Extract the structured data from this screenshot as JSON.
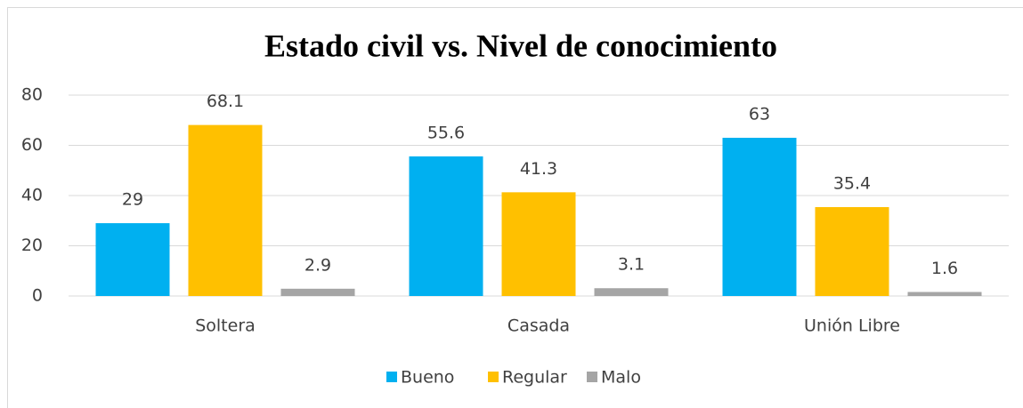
{
  "chart_data": {
    "type": "bar",
    "title": "Estado civil vs. Nivel de conocimiento",
    "categories": [
      "Soltera",
      "Casada",
      "Unión Libre"
    ],
    "series": [
      {
        "name": "Bueno",
        "color": "#00b0f0",
        "values": [
          29,
          55.6,
          63
        ]
      },
      {
        "name": "Regular",
        "color": "#ffc000",
        "values": [
          68.1,
          41.3,
          35.4
        ]
      },
      {
        "name": "Malo",
        "color": "#a5a5a5",
        "values": [
          2.9,
          3.1,
          1.6
        ]
      }
    ],
    "ylim": [
      0,
      80
    ],
    "yticks": [
      0,
      20,
      40,
      60,
      80
    ],
    "grid": true,
    "legend": "bottom"
  }
}
